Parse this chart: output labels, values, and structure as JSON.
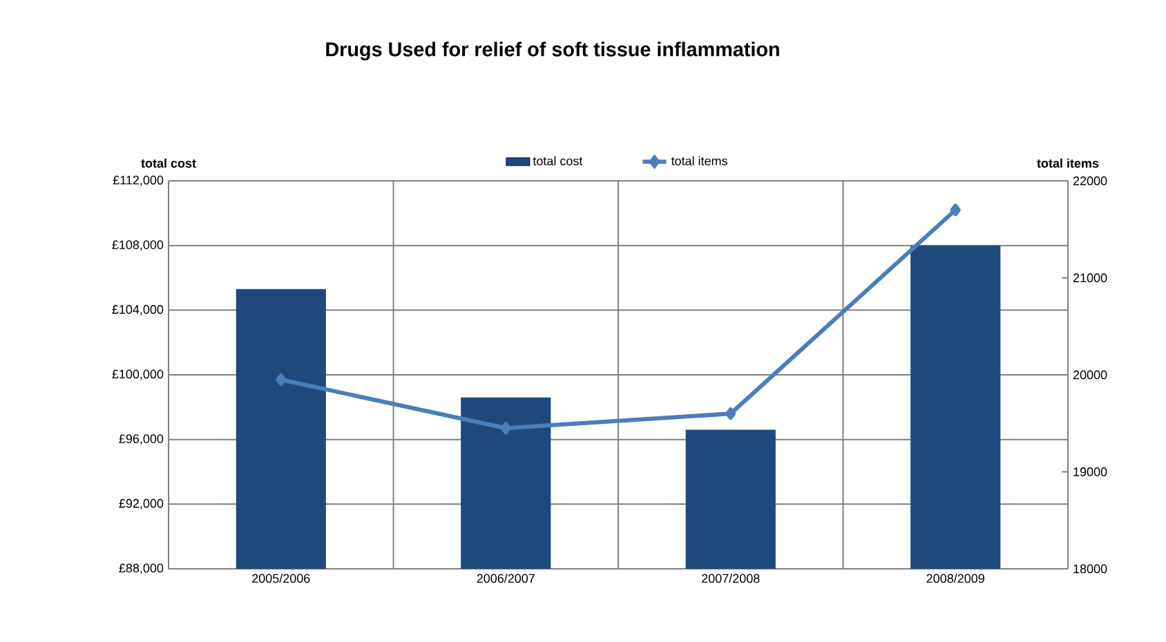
{
  "chart_data": {
    "type": "bar",
    "title": "Drugs Used for relief of soft tissue inflammation",
    "ylabel": "total cost",
    "y2label": "total items",
    "categories": [
      "2005/2006",
      "2006/2007",
      "2007/2008",
      "2008/2009"
    ],
    "series": [
      {
        "name": "total cost",
        "color": "#1f497d",
        "values": [
          105300,
          98600,
          96600,
          108000
        ]
      },
      {
        "name": "total items",
        "type": "line",
        "axis": "y2",
        "color": "#4a7ebb",
        "marker": "diamond",
        "values": [
          19950,
          19450,
          19600,
          21700
        ]
      }
    ],
    "ylim": [
      88000,
      112000
    ],
    "yticks": [
      {
        "value": 88000,
        "label": "£88,000"
      },
      {
        "value": 92000,
        "label": "£92,000"
      },
      {
        "value": 96000,
        "label": "£96,000"
      },
      {
        "value": 100000,
        "label": "£100,000"
      },
      {
        "value": 104000,
        "label": "£104,000"
      },
      {
        "value": 108000,
        "label": "£108,000"
      },
      {
        "value": 112000,
        "label": "£112,000"
      }
    ],
    "y2lim": [
      18000,
      22000
    ],
    "y2ticks": [
      18000,
      19000,
      20000,
      21000,
      22000
    ],
    "grid": true,
    "legend": "top"
  }
}
